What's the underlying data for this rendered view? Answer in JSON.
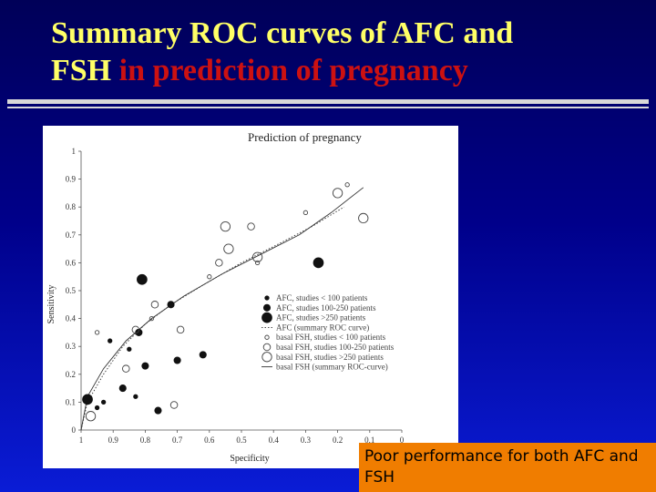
{
  "slide": {
    "title_line1": "Summary ROC curves of AFC and",
    "title_line2_a": "FSH",
    "title_line2_b": "in prediction of pregnancy",
    "note": "Poor performance for both AFC and FSH"
  },
  "colors": {
    "title_text": "#ffff66",
    "title_accent": "#cc1111",
    "background_top": "#000058",
    "background_bottom": "#0a1cd6",
    "note_box": "#f07d00"
  },
  "chart_data": {
    "type": "scatter",
    "title": "Prediction of pregnancy",
    "xlabel": "Specificity",
    "ylabel": "Sensitivity",
    "xlim": [
      1,
      0
    ],
    "ylim": [
      0,
      1
    ],
    "x_ticks": [
      "1",
      "0.9",
      "0.8",
      "0.7",
      "0.6",
      "0.5",
      "0.4",
      "0.3",
      "0.2",
      "0.1",
      "0"
    ],
    "y_ticks": [
      "0",
      "0.1",
      "0.2",
      "0.3",
      "0.4",
      "0.5",
      "0.6",
      "0.7",
      "0.8",
      "0.9",
      "1"
    ],
    "legend_position": "bottom-right",
    "series": [
      {
        "name": "AFC, studies < 100 patients",
        "marker": "small-filled",
        "x": [
          0.95,
          0.83,
          0.91,
          0.85,
          0.93
        ],
        "y": [
          0.08,
          0.12,
          0.32,
          0.29,
          0.1
        ]
      },
      {
        "name": "AFC, studies 100-250 patients",
        "marker": "medium-filled",
        "x": [
          0.72,
          0.62,
          0.82,
          0.76,
          0.8,
          0.87,
          0.7
        ],
        "y": [
          0.45,
          0.27,
          0.35,
          0.07,
          0.23,
          0.15,
          0.25
        ]
      },
      {
        "name": "AFC, studies >250 patients",
        "marker": "large-filled",
        "x": [
          0.98,
          0.81,
          0.26
        ],
        "y": [
          0.11,
          0.54,
          0.6
        ]
      },
      {
        "name": "AFC (summary ROC curve)",
        "marker": "line-dotted",
        "x": [
          1,
          0.98,
          0.93,
          0.87,
          0.8,
          0.72,
          0.62,
          0.5,
          0.38,
          0.28,
          0.18
        ],
        "y": [
          0,
          0.1,
          0.2,
          0.3,
          0.38,
          0.45,
          0.52,
          0.6,
          0.67,
          0.73,
          0.8
        ]
      },
      {
        "name": "basal FSH, studies < 100 patients",
        "marker": "small-open",
        "x": [
          0.95,
          0.78,
          0.6,
          0.45,
          0.3,
          0.17
        ],
        "y": [
          0.35,
          0.4,
          0.55,
          0.6,
          0.78,
          0.88
        ]
      },
      {
        "name": "basal FSH, studies 100-250 patients",
        "marker": "medium-open",
        "x": [
          0.77,
          0.69,
          0.57,
          0.47,
          0.83,
          0.71,
          0.86
        ],
        "y": [
          0.45,
          0.36,
          0.6,
          0.73,
          0.36,
          0.09,
          0.22
        ]
      },
      {
        "name": "basal FSH, studies >250 patients",
        "marker": "large-open",
        "x": [
          0.55,
          0.54,
          0.45,
          0.2,
          0.12,
          0.97
        ],
        "y": [
          0.73,
          0.65,
          0.62,
          0.85,
          0.76,
          0.05
        ]
      },
      {
        "name": "basal FSH (summary ROC-curve)",
        "marker": "line-solid",
        "x": [
          1,
          0.98,
          0.93,
          0.86,
          0.78,
          0.68,
          0.56,
          0.44,
          0.32,
          0.22,
          0.12
        ],
        "y": [
          0,
          0.12,
          0.22,
          0.32,
          0.4,
          0.48,
          0.56,
          0.63,
          0.7,
          0.78,
          0.87
        ]
      }
    ]
  }
}
